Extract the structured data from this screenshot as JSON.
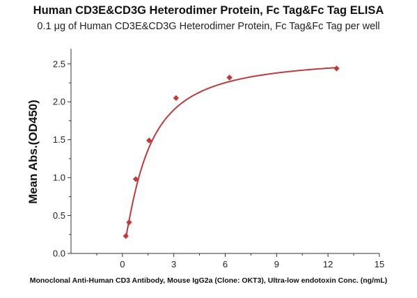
{
  "chart_data": {
    "type": "scatter",
    "title": "Human CD3E&CD3G Heterodimer Protein, Fc Tag&Fc Tag ELISA",
    "subtitle": "0.1 μg of Human CD3E&CD3G Heterodimer Protein, Fc Tag&Fc Tag per well",
    "xlabel": "Monoclonal Anti-Human CD3 Antibody, Mouse IgG2a (Clone: OKT3), Ultra-low endotoxin Conc. (ng/mL)",
    "ylabel": "Mean Abs.(OD450)",
    "xlim": [
      -3,
      15
    ],
    "ylim": [
      0,
      2.7
    ],
    "xticks": [
      "0",
      "3",
      "6",
      "9",
      "12",
      "15"
    ],
    "xtick_values": [
      0,
      3,
      6,
      9,
      12,
      15
    ],
    "yticks": [
      "0.0",
      "0.5",
      "1.0",
      "1.5",
      "2.0",
      "2.5"
    ],
    "ytick_values": [
      0,
      0.5,
      1.0,
      1.5,
      2.0,
      2.5
    ],
    "grid": false,
    "series": [
      {
        "marker": "diamond",
        "color": "#c0393b",
        "x": [
          0.2,
          0.39,
          0.78,
          1.56,
          3.13,
          6.25,
          12.5
        ],
        "y": [
          0.23,
          0.41,
          0.98,
          1.49,
          2.05,
          2.32,
          2.44
        ]
      }
    ],
    "fit_curve": {
      "type": "hill",
      "color": "#c0393b",
      "bottom": 0,
      "top": 2.6,
      "ec50": 1.38,
      "hill": 1.27
    }
  }
}
